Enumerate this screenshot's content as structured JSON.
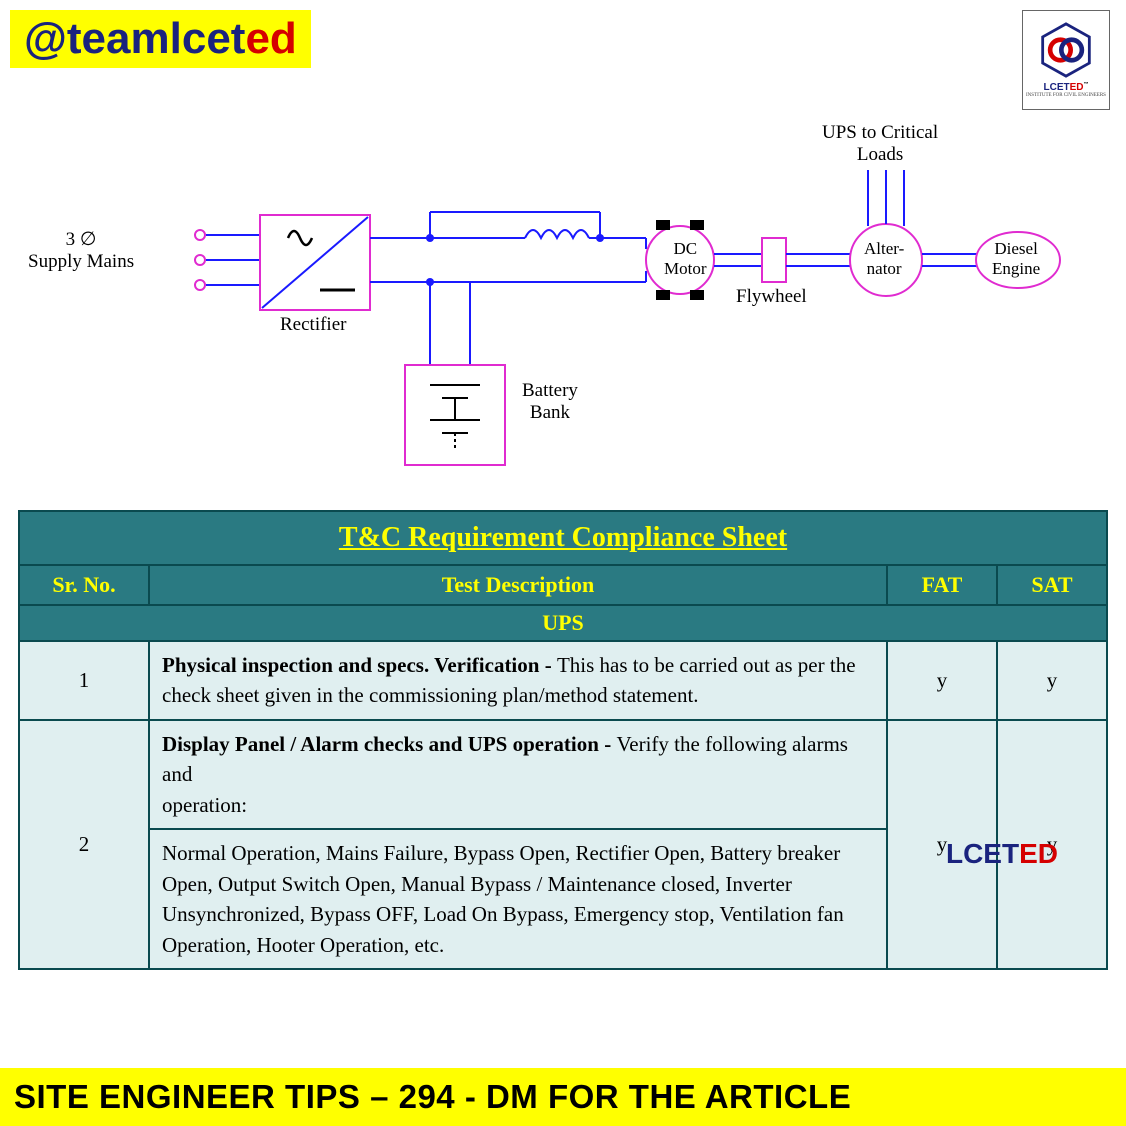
{
  "brand": {
    "handle_prefix": "@teamlcet",
    "handle_suffix": "ed",
    "bg": "#ffff00",
    "color_main": "#1a237e",
    "color_suffix": "#d50000",
    "fontsize": 44
  },
  "logo": {
    "line1": "LCET",
    "line1_suffix": "ED",
    "sub": "INSTITUTE FOR CIVIL ENGINEERS",
    "color1": "#1a237e",
    "color2": "#d50000"
  },
  "diagram": {
    "stroke_main": "#1a1aff",
    "stroke_component": "#e02bd0",
    "stroke_width": 2,
    "node_fill": "#1a1aff",
    "font_family": "Times New Roman",
    "font_size": 19,
    "labels": {
      "supply": "3 ∅\nSupply Mains",
      "rectifier": "Rectifier",
      "battery": "Battery\nBank",
      "dcmotor": "DC\nMotor",
      "flywheel": "Flywheel",
      "alternator": "Alter-\nnator",
      "diesel": "Diesel\nEngine",
      "ups_loads": "UPS to Critical\nLoads"
    }
  },
  "table": {
    "title": "T&C Requirement Compliance Sheet",
    "title_color": "#ffff00",
    "header_bg": "#2a7a82",
    "header_color": "#ffff00",
    "body_bg": "#e0eff0",
    "border_color": "#0a4a4f",
    "columns": [
      "Sr. No.",
      "Test Description",
      "FAT",
      "SAT"
    ],
    "section": "UPS",
    "rows": [
      {
        "sr": "1",
        "desc_bold": "Physical inspection and specs. Verification - ",
        "desc": "This has to be carried out as per the\ncheck sheet given in the commissioning plan/method statement.",
        "fat": "y",
        "sat": "y"
      },
      {
        "sr": "2",
        "desc_bold_a": "Display Panel / Alarm checks and UPS operation - ",
        "desc_a": " Verify the following alarms and\noperation:",
        "desc_b": "Normal Operation, Mains Failure, Bypass Open, Rectifier Open, Battery breaker Open, Output Switch Open, Manual Bypass / Maintenance closed, Inverter Unsynchronized, Bypass OFF, Load On Bypass, Emergency stop, Ventilation fan Operation, Hooter Operation, etc.",
        "fat": "y",
        "sat": "y"
      }
    ]
  },
  "watermark": {
    "t1": "LCET",
    "t2": "ED",
    "c1": "#1a237e",
    "c2": "#d50000"
  },
  "footer": {
    "text": "SITE ENGINEER TIPS – 294  - DM FOR THE ARTICLE",
    "bg": "#ffff00",
    "color": "#000000"
  }
}
